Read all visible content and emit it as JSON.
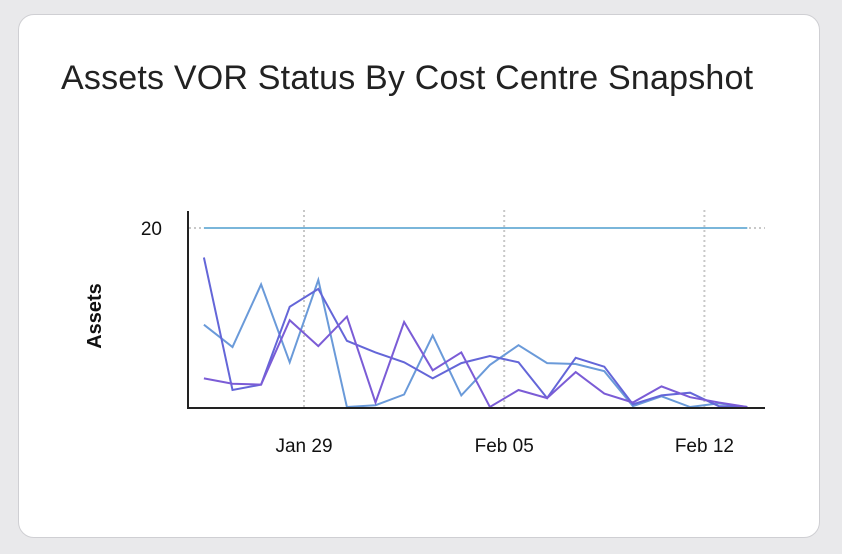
{
  "chart_data": {
    "type": "line",
    "title": "Assets VOR Status By Cost Centre Snapshot",
    "xlabel": "",
    "ylabel": "Assets",
    "ylim": [
      0,
      20
    ],
    "yticks": [
      "20"
    ],
    "xticks": [
      {
        "label": "Jan 29",
        "date": "Jan 29 00:00"
      },
      {
        "label": "Feb 05",
        "date": "Feb 05 00:00"
      },
      {
        "label": "Feb 12",
        "date": "Feb 12 00:00"
      }
    ],
    "grid": "dotted vertical at x ticks, dotted horizontal at y tick",
    "x": [
      "Jan 25 12:00",
      "Jan 26 12:00",
      "Jan 27 12:00",
      "Jan 28 12:00",
      "Jan 29 12:00",
      "Jan 30 12:00",
      "Jan 31 12:00",
      "Feb 01 12:00",
      "Feb 02 12:00",
      "Feb 03 12:00",
      "Feb 04 12:00",
      "Feb 05 12:00",
      "Feb 06 12:00",
      "Feb 07 12:00",
      "Feb 08 12:00",
      "Feb 09 12:00",
      "Feb 10 12:00",
      "Feb 11 12:00",
      "Feb 12 12:00",
      "Feb 13 12:00"
    ],
    "series": [
      {
        "color": "#7ab6da",
        "values": [
          20,
          20,
          20,
          20,
          20,
          20,
          20,
          20,
          20,
          20,
          20,
          20,
          20,
          20,
          20,
          20,
          20,
          20,
          20,
          20
        ]
      },
      {
        "color": "#6a9ad9",
        "values": [
          9.2,
          6.7,
          13.7,
          5.0,
          14.2,
          0,
          0.2,
          1.4,
          8.0,
          1.3,
          4.7,
          6.9,
          4.9,
          4.8,
          4.0,
          0.1,
          1.2,
          0,
          0.4,
          0
        ]
      },
      {
        "color": "#6466d8",
        "values": [
          16.7,
          1.9,
          2.5,
          11.2,
          13.2,
          7.4,
          6.1,
          5.0,
          3.2,
          4.9,
          5.7,
          5.0,
          1.0,
          5.5,
          4.5,
          0.3,
          1.3,
          1.6,
          0.1,
          0
        ]
      },
      {
        "color": "#7b5cd6",
        "values": [
          3.2,
          2.6,
          2.5,
          9.7,
          6.8,
          10.1,
          0.5,
          9.5,
          4.1,
          6.1,
          0,
          1.9,
          1.0,
          3.9,
          1.5,
          0.5,
          2.3,
          1.1,
          0.5,
          0
        ]
      }
    ]
  }
}
